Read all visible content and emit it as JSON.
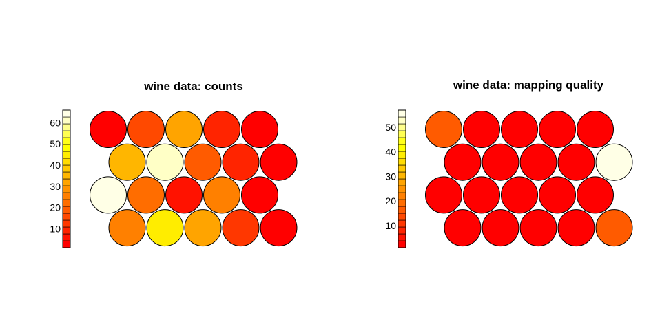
{
  "chart_data": [
    {
      "type": "heatmap",
      "subtype": "som-hexagonal-circles",
      "title": "wine data: counts",
      "grid": {
        "cols": 5,
        "rows": 4,
        "topology": "hexagonal"
      },
      "colorbar": {
        "ticks": [
          10,
          20,
          30,
          40,
          50,
          60
        ],
        "range": [
          1,
          66
        ],
        "palette": "heat",
        "levels": 20
      },
      "values": [
        [
          1,
          14,
          33,
          10,
          0
        ],
        [
          36,
          62,
          20,
          8,
          2
        ],
        [
          66,
          22,
          7,
          25,
          2
        ],
        [
          26,
          45,
          31,
          13,
          2
        ]
      ]
    },
    {
      "type": "heatmap",
      "subtype": "som-hexagonal-circles",
      "title": "wine data: mapping quality",
      "grid": {
        "cols": 5,
        "rows": 4,
        "topology": "hexagonal"
      },
      "colorbar": {
        "ticks": [
          10,
          20,
          30,
          40,
          50
        ],
        "range": [
          1,
          57
        ],
        "palette": "heat",
        "levels": 20
      },
      "values": [
        [
          16,
          1,
          1,
          1,
          1
        ],
        [
          1,
          1,
          1,
          1,
          57
        ],
        [
          1,
          1,
          1,
          1,
          1
        ],
        [
          1,
          1,
          1,
          1,
          16
        ]
      ]
    }
  ]
}
